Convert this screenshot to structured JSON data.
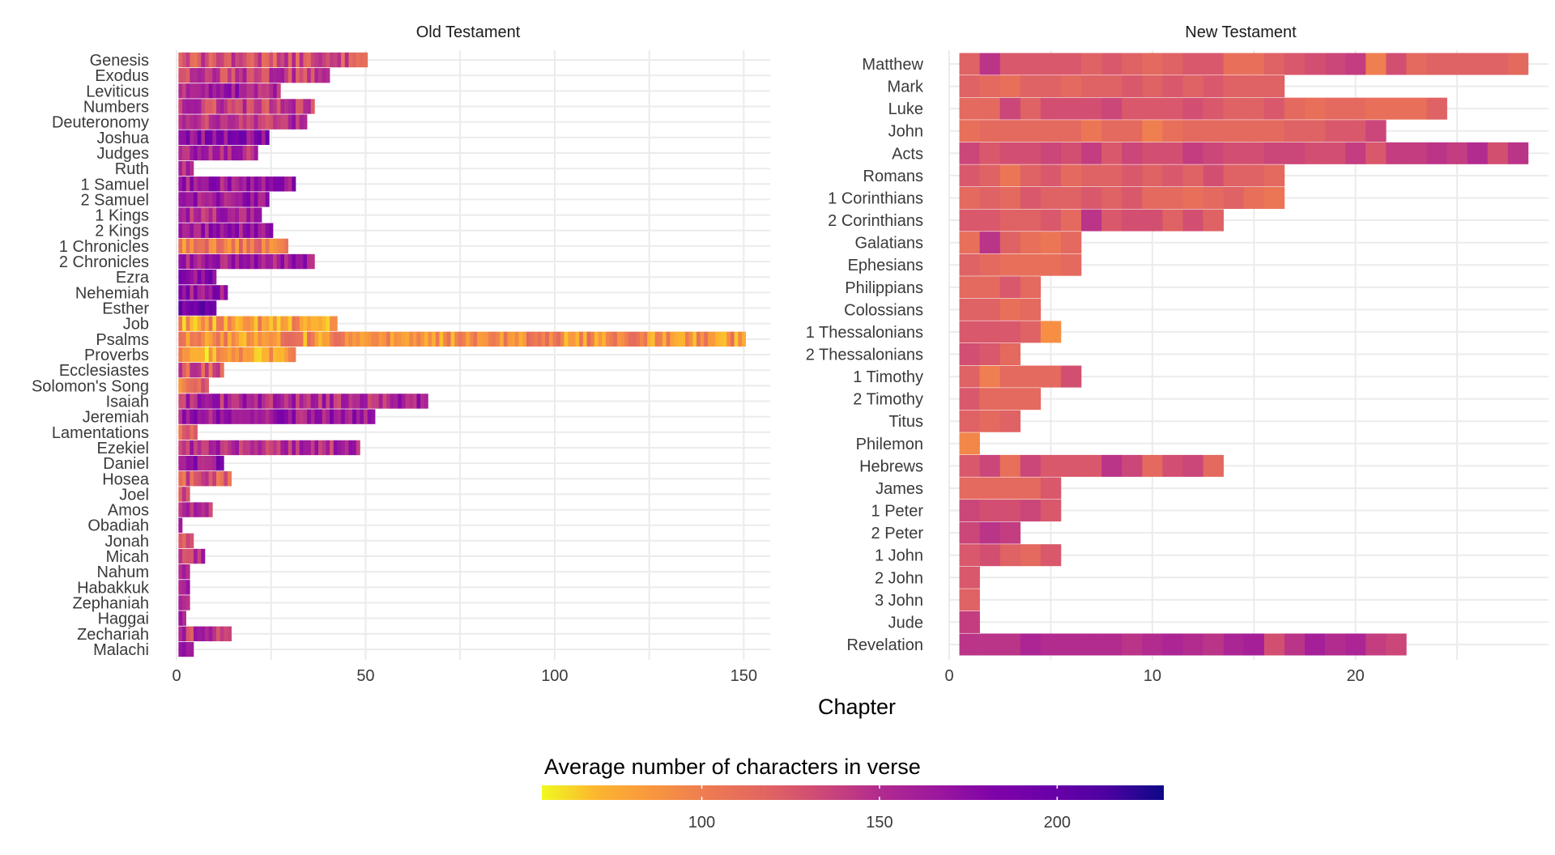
{
  "chart_data": [
    {
      "type": "heatmap",
      "title": "Old Testament",
      "xlim": [
        0,
        157
      ],
      "x_ticks": [
        0,
        50,
        100,
        150
      ],
      "books": [
        {
          "name": "Genesis",
          "chapters": 50,
          "level": 130
        },
        {
          "name": "Exodus",
          "chapters": 40,
          "level": 140
        },
        {
          "name": "Leviticus",
          "chapters": 27,
          "level": 160
        },
        {
          "name": "Numbers",
          "chapters": 36,
          "level": 140
        },
        {
          "name": "Deuteronomy",
          "chapters": 34,
          "level": 150
        },
        {
          "name": "Joshua",
          "chapters": 24,
          "level": 175
        },
        {
          "name": "Judges",
          "chapters": 21,
          "level": 155
        },
        {
          "name": "Ruth",
          "chapters": 4,
          "level": 160
        },
        {
          "name": "1 Samuel",
          "chapters": 31,
          "level": 165
        },
        {
          "name": "2 Samuel",
          "chapters": 24,
          "level": 165
        },
        {
          "name": "1 Kings",
          "chapters": 22,
          "level": 155
        },
        {
          "name": "2 Kings",
          "chapters": 25,
          "level": 165
        },
        {
          "name": "1 Chronicles",
          "chapters": 29,
          "level": 100
        },
        {
          "name": "2 Chronicles",
          "chapters": 36,
          "level": 160
        },
        {
          "name": "Ezra",
          "chapters": 10,
          "level": 175
        },
        {
          "name": "Nehemiah",
          "chapters": 13,
          "level": 170
        },
        {
          "name": "Esther",
          "chapters": 10,
          "level": 190
        },
        {
          "name": "Job",
          "chapters": 42,
          "level": 85
        },
        {
          "name": "Psalms",
          "chapters": 150,
          "level": 90
        },
        {
          "name": "Proverbs",
          "chapters": 31,
          "level": 80
        },
        {
          "name": "Ecclesiastes",
          "chapters": 12,
          "level": 125
        },
        {
          "name": "Solomon's Song",
          "chapters": 8,
          "level": 110
        },
        {
          "name": "Isaiah",
          "chapters": 66,
          "level": 155
        },
        {
          "name": "Jeremiah",
          "chapters": 52,
          "level": 165
        },
        {
          "name": "Lamentations",
          "chapters": 5,
          "level": 120
        },
        {
          "name": "Ezekiel",
          "chapters": 48,
          "level": 150
        },
        {
          "name": "Daniel",
          "chapters": 12,
          "level": 170
        },
        {
          "name": "Hosea",
          "chapters": 14,
          "level": 125
        },
        {
          "name": "Joel",
          "chapters": 3,
          "level": 130
        },
        {
          "name": "Amos",
          "chapters": 9,
          "level": 150
        },
        {
          "name": "Obadiah",
          "chapters": 1,
          "level": 170
        },
        {
          "name": "Jonah",
          "chapters": 4,
          "level": 130
        },
        {
          "name": "Micah",
          "chapters": 7,
          "level": 150
        },
        {
          "name": "Nahum",
          "chapters": 3,
          "level": 150
        },
        {
          "name": "Habakkuk",
          "chapters": 3,
          "level": 150
        },
        {
          "name": "Zephaniah",
          "chapters": 3,
          "level": 155
        },
        {
          "name": "Haggai",
          "chapters": 2,
          "level": 165
        },
        {
          "name": "Zechariah",
          "chapters": 14,
          "level": 145
        },
        {
          "name": "Malachi",
          "chapters": 4,
          "level": 160
        }
      ]
    },
    {
      "type": "heatmap",
      "title": "New Testament",
      "xlim": [
        0,
        29.5
      ],
      "x_ticks": [
        0,
        10,
        20
      ],
      "books": [
        {
          "name": "Matthew",
          "chapters": 28,
          "values": [
            120,
            145,
            125,
            125,
            125,
            125,
            120,
            125,
            120,
            115,
            120,
            125,
            125,
            110,
            110,
            120,
            125,
            130,
            135,
            140,
            100,
            130,
            115,
            120,
            120,
            120,
            120,
            115
          ]
        },
        {
          "name": "Mark",
          "chapters": 16,
          "values": [
            120,
            115,
            110,
            120,
            120,
            115,
            120,
            120,
            125,
            120,
            125,
            120,
            125,
            120,
            120,
            120
          ]
        },
        {
          "name": "Luke",
          "chapters": 24,
          "values": [
            115,
            115,
            135,
            120,
            130,
            130,
            130,
            135,
            125,
            125,
            125,
            130,
            125,
            120,
            120,
            125,
            115,
            110,
            115,
            115,
            110,
            110,
            110,
            120
          ]
        },
        {
          "name": "John",
          "chapters": 21,
          "values": [
            110,
            115,
            115,
            115,
            115,
            115,
            105,
            115,
            115,
            100,
            110,
            115,
            115,
            115,
            115,
            115,
            120,
            120,
            125,
            125,
            135
          ]
        },
        {
          "name": "Acts",
          "chapters": 28,
          "values": [
            135,
            125,
            130,
            130,
            135,
            130,
            140,
            125,
            135,
            130,
            130,
            140,
            135,
            130,
            130,
            135,
            135,
            130,
            130,
            140,
            125,
            140,
            140,
            145,
            140,
            150,
            130,
            145
          ]
        },
        {
          "name": "Romans",
          "chapters": 16,
          "values": [
            125,
            120,
            105,
            120,
            125,
            115,
            120,
            120,
            125,
            120,
            125,
            120,
            130,
            120,
            120,
            115
          ]
        },
        {
          "name": "1 Corinthians",
          "chapters": 16,
          "values": [
            115,
            120,
            115,
            125,
            120,
            120,
            125,
            120,
            125,
            115,
            115,
            110,
            115,
            120,
            110,
            105
          ]
        },
        {
          "name": "2 Corinthians",
          "chapters": 13,
          "values": [
            125,
            125,
            120,
            120,
            125,
            115,
            145,
            125,
            130,
            130,
            120,
            130,
            120
          ]
        },
        {
          "name": "Galatians",
          "chapters": 6,
          "values": [
            110,
            145,
            120,
            110,
            105,
            115
          ]
        },
        {
          "name": "Ephesians",
          "chapters": 6,
          "values": [
            120,
            115,
            110,
            110,
            110,
            115
          ]
        },
        {
          "name": "Philippians",
          "chapters": 4,
          "values": [
            115,
            115,
            125,
            115
          ]
        },
        {
          "name": "Colossians",
          "chapters": 4,
          "values": [
            120,
            120,
            110,
            115
          ]
        },
        {
          "name": "1 Thessalonians",
          "chapters": 5,
          "values": [
            125,
            125,
            125,
            120,
            90
          ]
        },
        {
          "name": "2 Thessalonians",
          "chapters": 3,
          "values": [
            130,
            125,
            115
          ]
        },
        {
          "name": "1 Timothy",
          "chapters": 6,
          "values": [
            120,
            100,
            115,
            115,
            115,
            130
          ]
        },
        {
          "name": "2 Timothy",
          "chapters": 4,
          "values": [
            125,
            115,
            115,
            115
          ]
        },
        {
          "name": "Titus",
          "chapters": 3,
          "values": [
            120,
            115,
            120
          ]
        },
        {
          "name": "Philemon",
          "chapters": 1,
          "values": [
            95
          ]
        },
        {
          "name": "Hebrews",
          "chapters": 13,
          "values": [
            125,
            135,
            110,
            135,
            125,
            125,
            125,
            145,
            135,
            115,
            130,
            135,
            115
          ]
        },
        {
          "name": "James",
          "chapters": 5,
          "values": [
            115,
            115,
            115,
            115,
            125
          ]
        },
        {
          "name": "1 Peter",
          "chapters": 5,
          "values": [
            135,
            130,
            130,
            135,
            125
          ]
        },
        {
          "name": "2 Peter",
          "chapters": 3,
          "values": [
            135,
            145,
            140
          ]
        },
        {
          "name": "1 John",
          "chapters": 5,
          "values": [
            125,
            130,
            120,
            115,
            125
          ]
        },
        {
          "name": "2 John",
          "chapters": 1,
          "values": [
            125
          ]
        },
        {
          "name": "3 John",
          "chapters": 1,
          "values": [
            120
          ]
        },
        {
          "name": "Jude",
          "chapters": 1,
          "values": [
            140
          ]
        },
        {
          "name": "Revelation",
          "chapters": 22,
          "values": [
            145,
            145,
            145,
            155,
            150,
            150,
            150,
            150,
            145,
            150,
            155,
            150,
            145,
            155,
            160,
            130,
            145,
            160,
            150,
            155,
            140,
            135
          ]
        }
      ]
    }
  ],
  "x_axis_label": "Chapter",
  "legend": {
    "title": "Average number of characters in verse",
    "range": [
      55,
      230
    ],
    "ticks": [
      100,
      150,
      200
    ],
    "colors": [
      "#f0f921",
      "#fdb42f",
      "#f89540",
      "#ed7953",
      "#e16462",
      "#cc4778",
      "#b12a90",
      "#9c179e",
      "#7e03a8",
      "#6a00a8",
      "#4c02a1",
      "#0d0887"
    ]
  }
}
